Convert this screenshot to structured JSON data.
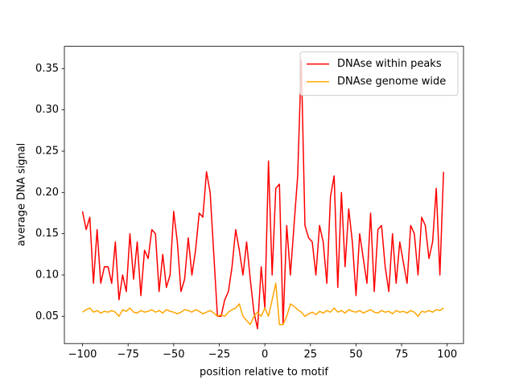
{
  "chart_data": {
    "type": "line",
    "xlabel": "position relative to motif",
    "ylabel": "average DNA signal",
    "x": [
      -100,
      -98,
      -96,
      -94,
      -92,
      -90,
      -88,
      -86,
      -84,
      -82,
      -80,
      -78,
      -76,
      -74,
      -72,
      -70,
      -68,
      -66,
      -64,
      -62,
      -60,
      -58,
      -56,
      -54,
      -52,
      -50,
      -48,
      -46,
      -44,
      -42,
      -40,
      -38,
      -36,
      -34,
      -32,
      -30,
      -28,
      -26,
      -24,
      -22,
      -20,
      -18,
      -16,
      -14,
      -12,
      -10,
      -8,
      -6,
      -4,
      -2,
      0,
      2,
      4,
      6,
      8,
      10,
      12,
      14,
      16,
      18,
      20,
      22,
      24,
      26,
      28,
      30,
      32,
      34,
      36,
      38,
      40,
      42,
      44,
      46,
      48,
      50,
      52,
      54,
      56,
      58,
      60,
      62,
      64,
      66,
      68,
      70,
      72,
      74,
      76,
      78,
      80,
      82,
      84,
      86,
      88,
      90,
      92,
      94,
      96,
      98
    ],
    "series": [
      {
        "name": "DNAse within peaks",
        "color": "#ff0000",
        "values": [
          0.177,
          0.155,
          0.17,
          0.09,
          0.155,
          0.09,
          0.11,
          0.11,
          0.09,
          0.14,
          0.07,
          0.1,
          0.08,
          0.15,
          0.095,
          0.14,
          0.075,
          0.13,
          0.12,
          0.155,
          0.15,
          0.08,
          0.125,
          0.085,
          0.1,
          0.177,
          0.14,
          0.08,
          0.095,
          0.145,
          0.1,
          0.13,
          0.175,
          0.17,
          0.225,
          0.2,
          0.125,
          0.05,
          0.05,
          0.07,
          0.08,
          0.11,
          0.155,
          0.13,
          0.1,
          0.14,
          0.095,
          0.055,
          0.035,
          0.11,
          0.06,
          0.238,
          0.1,
          0.205,
          0.21,
          0.04,
          0.16,
          0.1,
          0.16,
          0.22,
          0.36,
          0.16,
          0.145,
          0.14,
          0.1,
          0.16,
          0.14,
          0.09,
          0.195,
          0.22,
          0.085,
          0.2,
          0.11,
          0.18,
          0.14,
          0.075,
          0.15,
          0.12,
          0.09,
          0.175,
          0.08,
          0.155,
          0.16,
          0.11,
          0.08,
          0.15,
          0.09,
          0.14,
          0.115,
          0.09,
          0.16,
          0.15,
          0.1,
          0.17,
          0.16,
          0.12,
          0.14,
          0.205,
          0.1,
          0.225
        ]
      },
      {
        "name": "DNAse genome wide",
        "color": "#ffa500",
        "values": [
          0.055,
          0.058,
          0.06,
          0.055,
          0.057,
          0.054,
          0.056,
          0.055,
          0.057,
          0.055,
          0.05,
          0.058,
          0.056,
          0.06,
          0.055,
          0.054,
          0.057,
          0.055,
          0.056,
          0.058,
          0.055,
          0.057,
          0.054,
          0.058,
          0.056,
          0.055,
          0.053,
          0.055,
          0.058,
          0.057,
          0.055,
          0.058,
          0.056,
          0.053,
          0.055,
          0.057,
          0.054,
          0.05,
          0.052,
          0.05,
          0.055,
          0.058,
          0.06,
          0.065,
          0.05,
          0.045,
          0.04,
          0.05,
          0.055,
          0.05,
          0.06,
          0.05,
          0.07,
          0.09,
          0.04,
          0.04,
          0.05,
          0.065,
          0.062,
          0.058,
          0.055,
          0.05,
          0.053,
          0.055,
          0.052,
          0.056,
          0.054,
          0.057,
          0.055,
          0.06,
          0.055,
          0.057,
          0.054,
          0.058,
          0.056,
          0.055,
          0.057,
          0.054,
          0.056,
          0.058,
          0.055,
          0.054,
          0.057,
          0.055,
          0.056,
          0.053,
          0.057,
          0.055,
          0.056,
          0.054,
          0.057,
          0.055,
          0.05,
          0.056,
          0.055,
          0.057,
          0.055,
          0.058,
          0.057,
          0.06
        ]
      }
    ],
    "xlim": [
      -109.95,
      108.95
    ],
    "ylim": [
      0.017,
      0.377
    ],
    "xticks": [
      {
        "value": -100,
        "label": "−100"
      },
      {
        "value": -75,
        "label": "−75"
      },
      {
        "value": -50,
        "label": "−50"
      },
      {
        "value": -25,
        "label": "−25"
      },
      0,
      25,
      50,
      75,
      100
    ],
    "yticks": [
      0.05,
      {
        "value": 0.1,
        "label": "0.10"
      },
      0.15,
      {
        "value": 0.2,
        "label": "0.20"
      },
      0.25,
      {
        "value": 0.3,
        "label": "0.30"
      },
      0.35
    ],
    "legend": "upper right",
    "grid": false
  }
}
